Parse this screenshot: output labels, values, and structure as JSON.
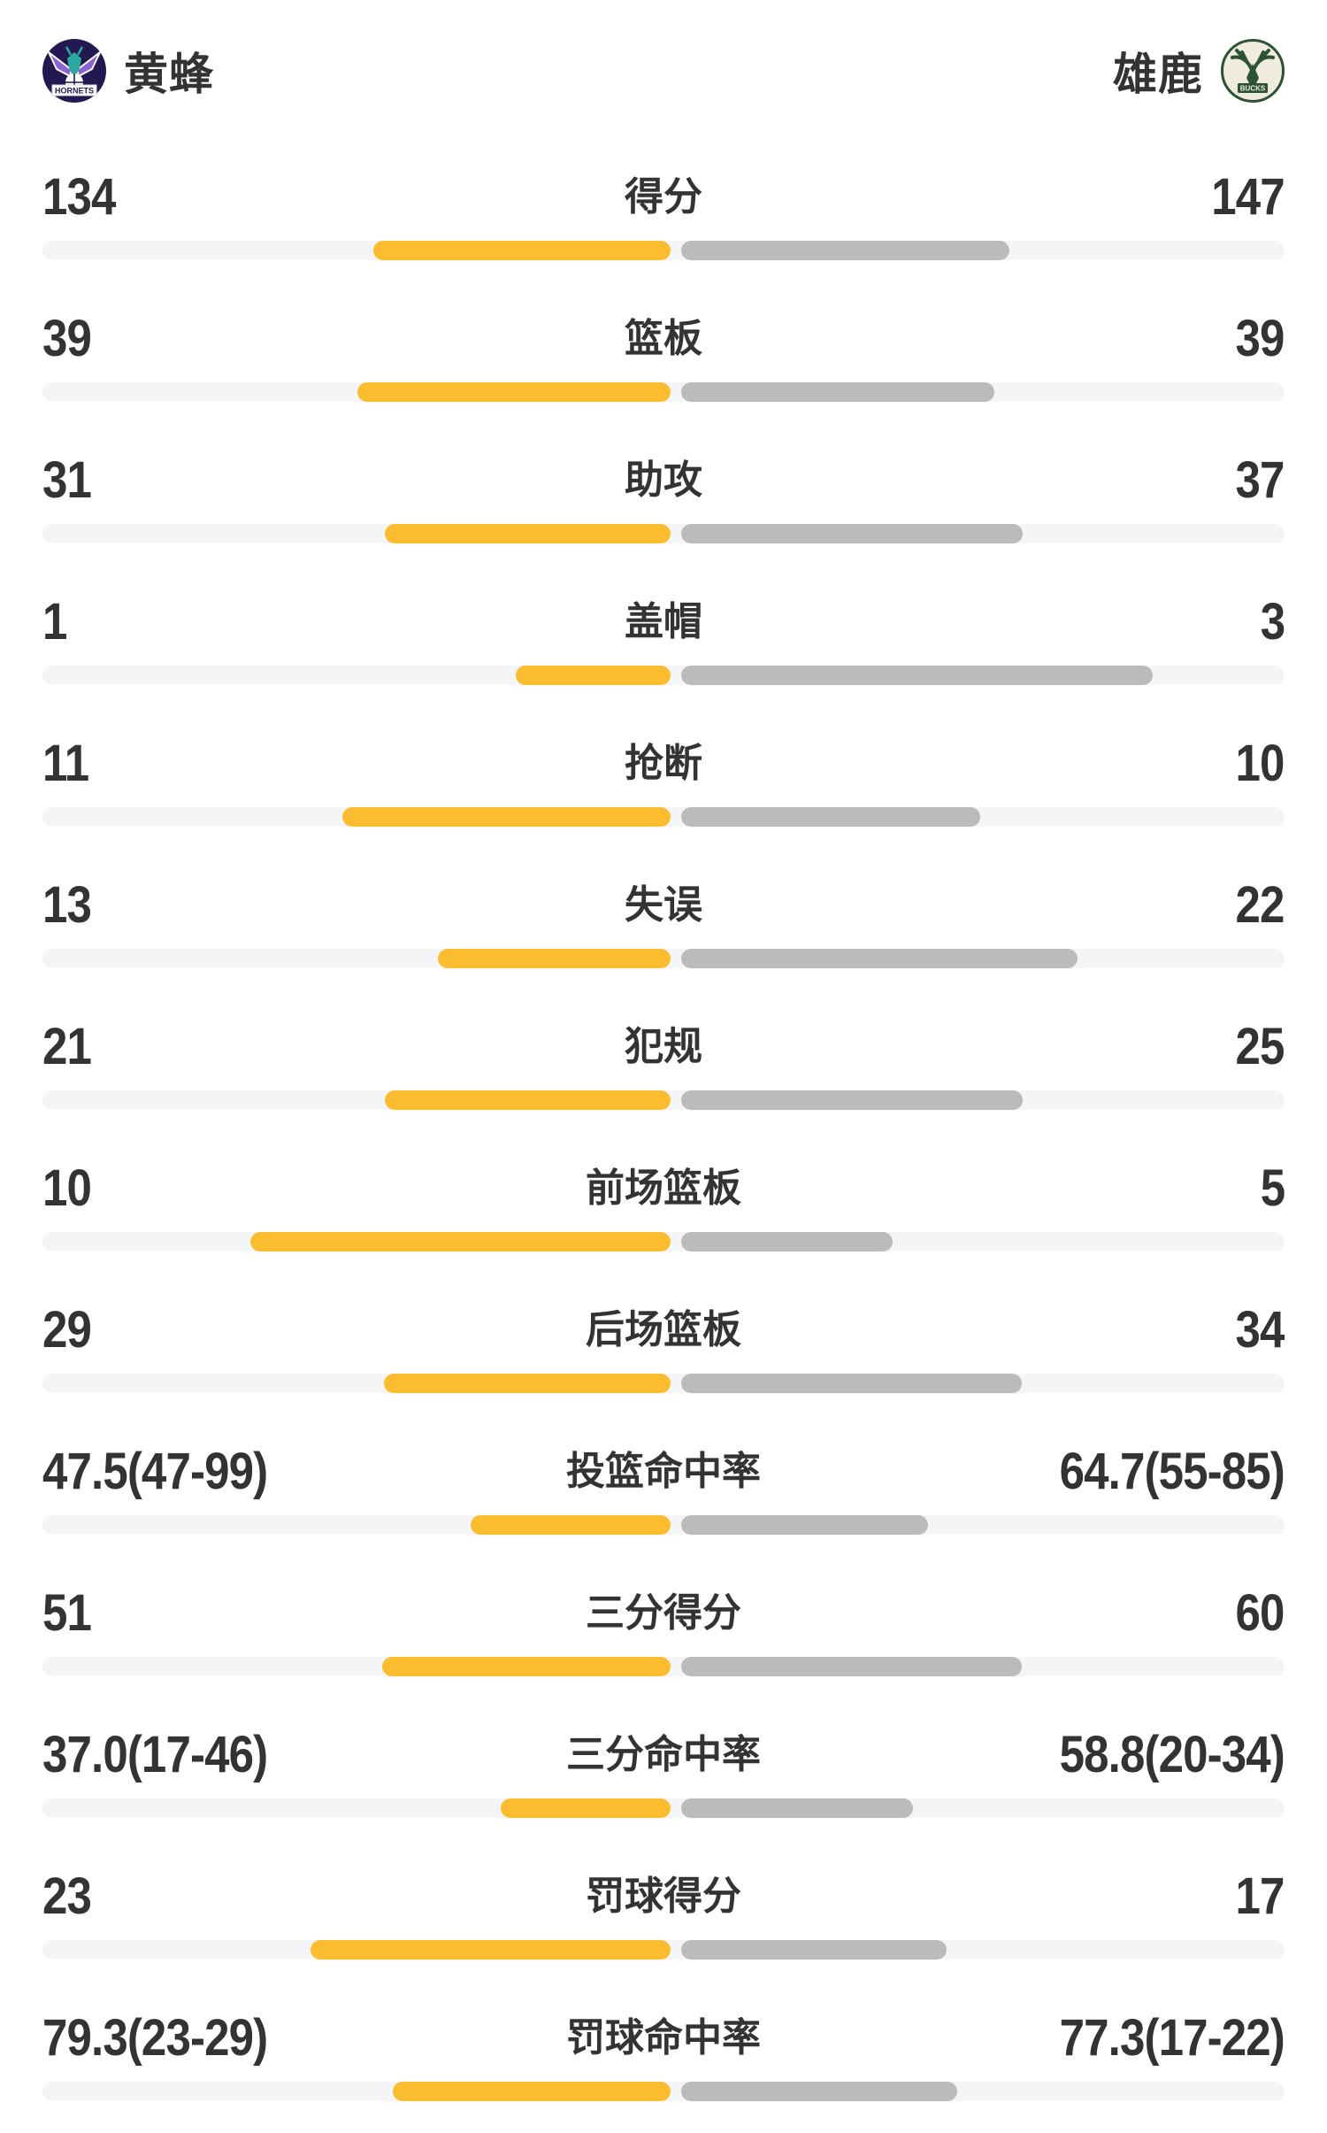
{
  "colors": {
    "home_bar": "#FBBD2F",
    "away_bar": "#BBBBBB",
    "bar_track": "#F4F5F7",
    "text": "#333333",
    "hornets_navy": "#241852",
    "hornets_purple": "#8A63D2",
    "hornets_teal": "#2BA8A0",
    "bucks_green": "#2C5234",
    "bucks_cream": "#EFEBDF"
  },
  "header": {
    "home": {
      "name": "黄蜂",
      "logo_label": "HORNETS"
    },
    "away": {
      "name": "雄鹿",
      "logo_label": "BUCKS"
    }
  },
  "chart_data": {
    "type": "bar",
    "variant": "head-to-head team comparison, bars grow outward from center",
    "home_team": "黄蜂",
    "away_team": "雄鹿",
    "legend_position": "none",
    "grid": false,
    "rows": [
      {
        "label": "得分",
        "home": "134",
        "away": "147",
        "home_len_pct": 23.9,
        "away_len_pct": 26.4
      },
      {
        "label": "篮板",
        "home": "39",
        "away": "39",
        "home_len_pct": 25.2,
        "away_len_pct": 25.2
      },
      {
        "label": "助攻",
        "home": "31",
        "away": "37",
        "home_len_pct": 23.0,
        "away_len_pct": 27.5
      },
      {
        "label": "盖帽",
        "home": "1",
        "away": "3",
        "home_len_pct": 12.5,
        "away_len_pct": 38.0
      },
      {
        "label": "抢断",
        "home": "11",
        "away": "10",
        "home_len_pct": 26.4,
        "away_len_pct": 24.1
      },
      {
        "label": "失误",
        "home": "13",
        "away": "22",
        "home_len_pct": 18.7,
        "away_len_pct": 31.9
      },
      {
        "label": "犯规",
        "home": "21",
        "away": "25",
        "home_len_pct": 23.0,
        "away_len_pct": 27.5
      },
      {
        "label": "前场篮板",
        "home": "10",
        "away": "5",
        "home_len_pct": 33.8,
        "away_len_pct": 17.0
      },
      {
        "label": "后场篮板",
        "home": "29",
        "away": "34",
        "home_len_pct": 23.1,
        "away_len_pct": 27.4
      },
      {
        "label": "投篮命中率",
        "home": "47.5(47-99)",
        "away": "64.7(55-85)",
        "home_len_pct": 16.1,
        "away_len_pct": 19.9
      },
      {
        "label": "三分得分",
        "home": "51",
        "away": "60",
        "home_len_pct": 23.2,
        "away_len_pct": 27.4
      },
      {
        "label": "三分命中率",
        "home": "37.0(17-46)",
        "away": "58.8(20-34)",
        "home_len_pct": 13.7,
        "away_len_pct": 18.7
      },
      {
        "label": "罚球得分",
        "home": "23",
        "away": "17",
        "home_len_pct": 29.0,
        "away_len_pct": 21.4
      },
      {
        "label": "罚球命中率",
        "home": "79.3(23-29)",
        "away": "77.3(17-22)",
        "home_len_pct": 22.4,
        "away_len_pct": 22.2
      }
    ]
  }
}
